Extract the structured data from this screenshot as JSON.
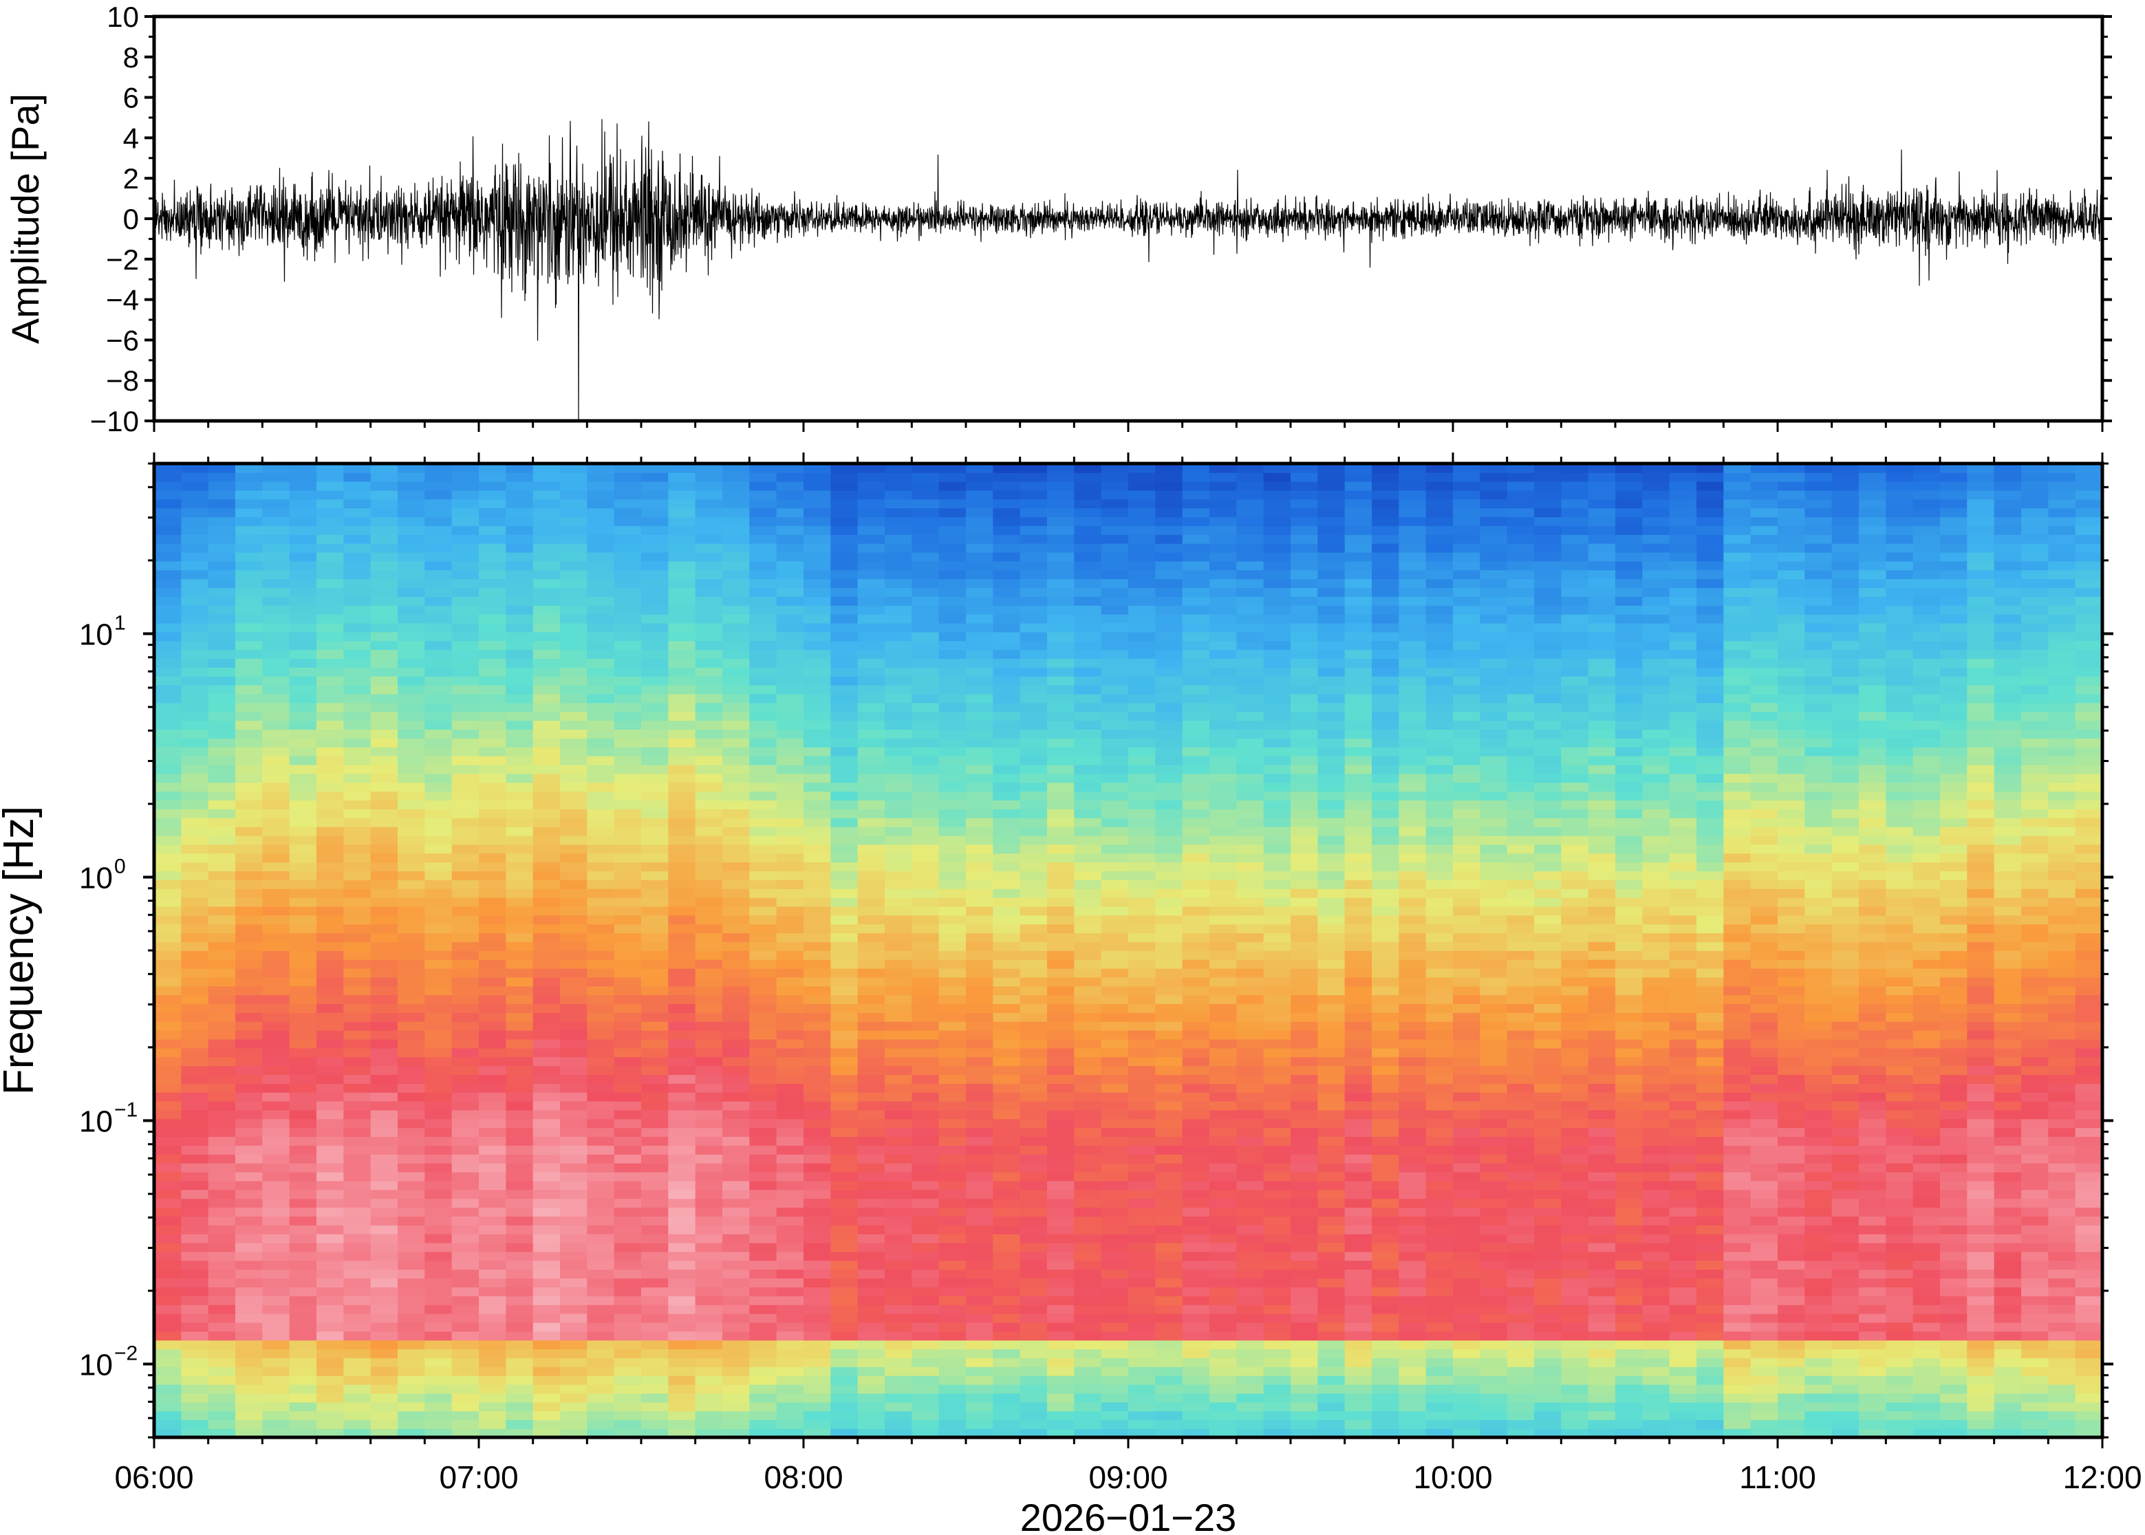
{
  "chart_data": [
    {
      "type": "line",
      "ylabel": "Amplitude [Pa]",
      "ylim": [
        -10,
        10
      ],
      "yticks": [
        "10",
        "8",
        "6",
        "4",
        "2",
        "0",
        "−2",
        "−4",
        "−6",
        "−8",
        "−10"
      ],
      "ytick_values": [
        10,
        8,
        6,
        4,
        2,
        0,
        -2,
        -4,
        -6,
        -8,
        -10
      ],
      "x_range": [
        "06:00",
        "12:00"
      ],
      "grid": false,
      "envelope": {
        "time_hours": [
          6.0,
          6.25,
          6.5,
          6.75,
          6.9,
          7.0,
          7.25,
          7.4,
          7.5,
          7.6,
          7.75,
          7.9,
          8.0,
          8.5,
          9.0,
          9.5,
          10.0,
          10.5,
          11.0,
          11.25,
          11.5,
          11.75,
          12.0
        ],
        "max_abs_pa": [
          2.0,
          2.8,
          3.2,
          3.0,
          3.0,
          5.0,
          6.0,
          6.5,
          7.0,
          5.0,
          3.0,
          2.0,
          1.3,
          1.3,
          1.4,
          1.5,
          1.6,
          1.7,
          2.0,
          2.6,
          2.6,
          2.3,
          2.0
        ]
      },
      "series": [
        {
          "color": "#000000"
        }
      ]
    },
    {
      "type": "heatmap",
      "ylabel": "Frequency [Hz]",
      "yscale": "log",
      "ylim_hz": [
        0.005,
        50
      ],
      "yticks": [
        {
          "base": "10",
          "exp": "1",
          "value": 10
        },
        {
          "base": "10",
          "exp": "0",
          "value": 1
        },
        {
          "base": "10",
          "exp": "−1",
          "value": 0.1
        },
        {
          "base": "10",
          "exp": "−2",
          "value": 0.01
        }
      ],
      "xlabel": "2026−01−23",
      "xticks": [
        "06:00",
        "07:00",
        "08:00",
        "09:00",
        "10:00",
        "11:00",
        "12:00"
      ],
      "colormap": "rainbow (low = blue, high = pink)",
      "colors": {
        "low": "#0a1aa0",
        "mid_low": "#5fe0d0",
        "mid": "#e6ec78",
        "mid_high": "#fa9a3c",
        "high": "#f05060",
        "peak": "#f8b8c0"
      }
    }
  ]
}
